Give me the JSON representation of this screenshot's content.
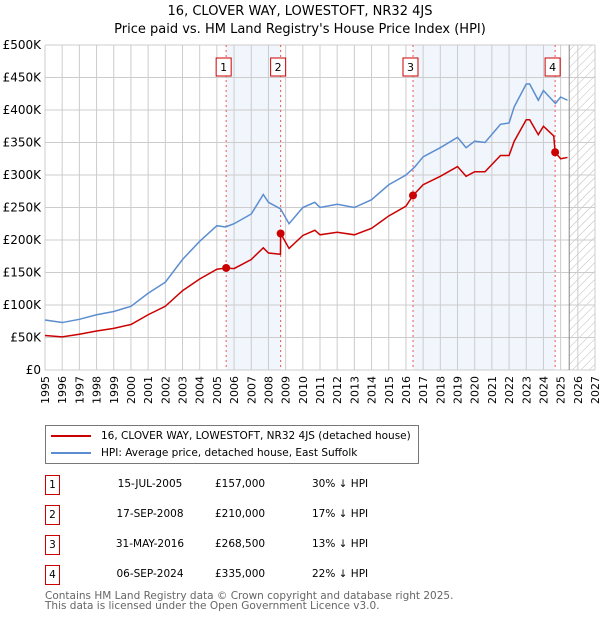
{
  "chart_data": {
    "type": "line",
    "title": "16, CLOVER WAY, LOWESTOFT, NR32 4JS",
    "subtitle": "Price paid vs. HM Land Registry's House Price Index (HPI)",
    "xlim": [
      1995,
      2027
    ],
    "ylim": [
      0,
      500000
    ],
    "yticks": [
      {
        "v": 0,
        "l": "£0"
      },
      {
        "v": 50000,
        "l": "£50K"
      },
      {
        "v": 100000,
        "l": "£100K"
      },
      {
        "v": 150000,
        "l": "£150K"
      },
      {
        "v": 200000,
        "l": "£200K"
      },
      {
        "v": 250000,
        "l": "£250K"
      },
      {
        "v": 300000,
        "l": "£300K"
      },
      {
        "v": 350000,
        "l": "£350K"
      },
      {
        "v": 400000,
        "l": "£400K"
      },
      {
        "v": 450000,
        "l": "£450K"
      },
      {
        "v": 500000,
        "l": "£500K"
      }
    ],
    "xticks": [
      "1995",
      "1996",
      "1997",
      "1998",
      "1999",
      "2000",
      "2001",
      "2002",
      "2003",
      "2004",
      "2005",
      "2006",
      "2007",
      "2008",
      "2009",
      "2010",
      "2011",
      "2012",
      "2013",
      "2014",
      "2015",
      "2016",
      "2017",
      "2018",
      "2019",
      "2020",
      "2021",
      "2022",
      "2023",
      "2024",
      "2025",
      "2026",
      "2027"
    ],
    "grid": true,
    "forecast_from": 2025.5,
    "shaded": [
      [
        2005.54,
        2008.71
      ],
      [
        2016.41,
        2024.68
      ]
    ],
    "series": [
      {
        "name": "16, CLOVER WAY, LOWESTOFT, NR32 4JS (detached house)",
        "color": "#cc0000",
        "x": [
          1995,
          1996,
          1997,
          1998,
          1999,
          2000,
          2001,
          2002,
          2003,
          2004,
          2005,
          2005.54,
          2006,
          2007,
          2007.7,
          2008,
          2008.7,
          2008.71,
          2009.2,
          2010,
          2010.7,
          2011,
          2012,
          2013,
          2014,
          2015,
          2016,
          2016.41,
          2017,
          2018,
          2019,
          2019.5,
          2020,
          2020.6,
          2021.5,
          2022,
          2022.3,
          2023,
          2023.2,
          2023.7,
          2024,
          2024.6,
          2024.68,
          2025,
          2025.4
        ],
        "y": [
          53000,
          51000,
          55000,
          60000,
          64000,
          70000,
          85000,
          98000,
          122000,
          140000,
          155000,
          157000,
          156000,
          170000,
          188000,
          180000,
          178000,
          210000,
          187000,
          207000,
          215000,
          208000,
          212000,
          208000,
          218000,
          237000,
          252000,
          268500,
          285000,
          298000,
          313000,
          298000,
          305000,
          305000,
          330000,
          330000,
          352000,
          385000,
          385000,
          362000,
          375000,
          360000,
          335000,
          325000,
          327000
        ]
      },
      {
        "name": "HPI: Average price, detached house, East Suffolk",
        "color": "#5b8dd0",
        "x": [
          1995,
          1996,
          1997,
          1998,
          1999,
          2000,
          2001,
          2002,
          2003,
          2004,
          2005,
          2005.5,
          2006,
          2007,
          2007.7,
          2008,
          2008.7,
          2009.2,
          2010,
          2010.7,
          2011,
          2012,
          2013,
          2014,
          2015,
          2016,
          2016.5,
          2017,
          2018,
          2019,
          2019.5,
          2020,
          2020.6,
          2021.5,
          2022,
          2022.3,
          2023,
          2023.2,
          2023.7,
          2024,
          2024.7,
          2025,
          2025.4
        ],
        "y": [
          77000,
          73000,
          78000,
          85000,
          90000,
          98000,
          118000,
          135000,
          170000,
          198000,
          222000,
          220000,
          225000,
          240000,
          270000,
          258000,
          248000,
          225000,
          250000,
          258000,
          250000,
          255000,
          250000,
          262000,
          285000,
          300000,
          312000,
          328000,
          342000,
          358000,
          342000,
          352000,
          350000,
          378000,
          380000,
          405000,
          440000,
          440000,
          415000,
          430000,
          410000,
          420000,
          415000
        ]
      }
    ],
    "sales": [
      {
        "n": "1",
        "x": 2005.54,
        "date": "15-JUL-2005",
        "price_value": 157000,
        "price": "£157,000",
        "hpi": "30% ↓ HPI"
      },
      {
        "n": "2",
        "x": 2008.71,
        "date": "17-SEP-2008",
        "price_value": 210000,
        "price": "£210,000",
        "hpi": "17% ↓ HPI"
      },
      {
        "n": "3",
        "x": 2016.41,
        "date": "31-MAY-2016",
        "price_value": 268500,
        "price": "£268,500",
        "hpi": "13% ↓ HPI"
      },
      {
        "n": "4",
        "x": 2024.68,
        "date": "06-SEP-2024",
        "price_value": 335000,
        "price": "£335,000",
        "hpi": "22% ↓ HPI"
      }
    ]
  },
  "footer": {
    "line1": "Contains HM Land Registry data © Crown copyright and database right 2025.",
    "line2": "This data is licensed under the Open Government Licence v3.0."
  }
}
